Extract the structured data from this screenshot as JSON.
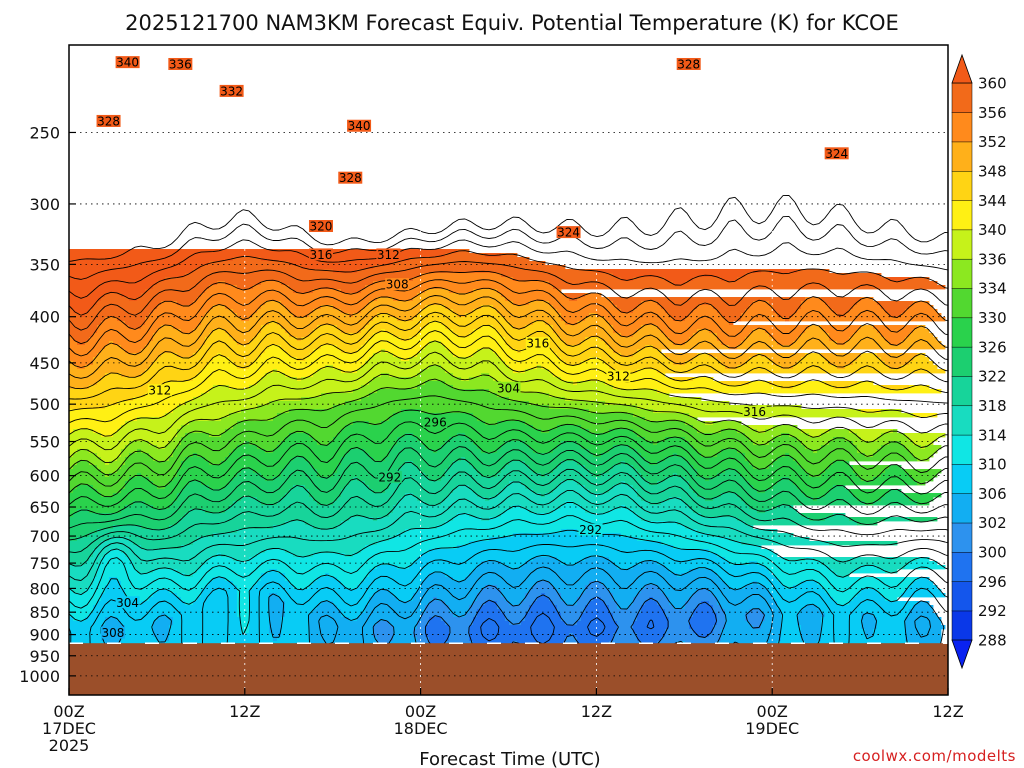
{
  "chart_data": {
    "type": "heatmap",
    "title": "2025121700 NAM3KM Forecast Equiv. Potential Temperature (K) for KCOE",
    "xlabel": "Forecast Time (UTC)",
    "ylabel": "",
    "credit": "coolwx.com/modelts",
    "x_range_hours": [
      0,
      60
    ],
    "x_ticks": [
      {
        "hour": 0,
        "lines": [
          "00Z",
          "17DEC",
          "2025"
        ]
      },
      {
        "hour": 12,
        "lines": [
          "12Z"
        ]
      },
      {
        "hour": 24,
        "lines": [
          "00Z",
          "18DEC"
        ]
      },
      {
        "hour": 36,
        "lines": [
          "12Z"
        ]
      },
      {
        "hour": 48,
        "lines": [
          "00Z",
          "19DEC"
        ]
      },
      {
        "hour": 60,
        "lines": [
          "12Z"
        ]
      }
    ],
    "y_axis_scale": "log-pressure",
    "y_range_hpa": [
      1050,
      200
    ],
    "y_ticks": [
      250,
      300,
      350,
      400,
      450,
      500,
      550,
      600,
      650,
      700,
      750,
      800,
      850,
      900,
      950,
      1000
    ],
    "grid": true,
    "ground_pressure_hpa": 920,
    "ground_color": "#9b4f2a",
    "colorbar": {
      "labels": [
        288,
        292,
        296,
        300,
        302,
        306,
        310,
        314,
        318,
        322,
        326,
        330,
        334,
        336,
        340,
        344,
        348,
        352,
        356,
        360
      ],
      "colors": [
        "#0a38e8",
        "#1456ec",
        "#1f73f0",
        "#2d92ee",
        "#12aef2",
        "#08ccf5",
        "#10e6e4",
        "#18dcc0",
        "#17d49a",
        "#1ccf70",
        "#2ad24c",
        "#52d830",
        "#8ce820",
        "#c6f21a",
        "#fff014",
        "#ffd414",
        "#ffb01a",
        "#ff8a1c",
        "#f26a1a"
      ],
      "under_color": "#0a22f0",
      "over_color": "#f25a18"
    },
    "contour_labels": [
      {
        "text": "340",
        "hour": 4.0,
        "p": 210
      },
      {
        "text": "336",
        "hour": 7.6,
        "p": 211
      },
      {
        "text": "332",
        "hour": 11.1,
        "p": 226
      },
      {
        "text": "328",
        "hour": 2.7,
        "p": 244
      },
      {
        "text": "340",
        "hour": 19.8,
        "p": 247
      },
      {
        "text": "328",
        "hour": 19.2,
        "p": 282
      },
      {
        "text": "328",
        "hour": 42.3,
        "p": 211
      },
      {
        "text": "324",
        "hour": 52.4,
        "p": 265
      },
      {
        "text": "324",
        "hour": 34.1,
        "p": 324
      },
      {
        "text": "320",
        "hour": 17.2,
        "p": 319
      },
      {
        "text": "316",
        "hour": 17.2,
        "p": 343
      },
      {
        "text": "312",
        "hour": 21.8,
        "p": 343
      },
      {
        "text": "308",
        "hour": 22.4,
        "p": 370
      },
      {
        "text": "316",
        "hour": 32.0,
        "p": 430
      },
      {
        "text": "312",
        "hour": 37.5,
        "p": 468
      },
      {
        "text": "304",
        "hour": 30.0,
        "p": 482
      },
      {
        "text": "312",
        "hour": 6.2,
        "p": 485
      },
      {
        "text": "316",
        "hour": 46.8,
        "p": 512
      },
      {
        "text": "296",
        "hour": 25.0,
        "p": 526
      },
      {
        "text": "292",
        "hour": 21.9,
        "p": 605
      },
      {
        "text": "292",
        "hour": 35.6,
        "p": 692
      },
      {
        "text": "304",
        "hour": 4.0,
        "p": 833
      },
      {
        "text": "308",
        "hour": 3.0,
        "p": 900
      }
    ]
  }
}
